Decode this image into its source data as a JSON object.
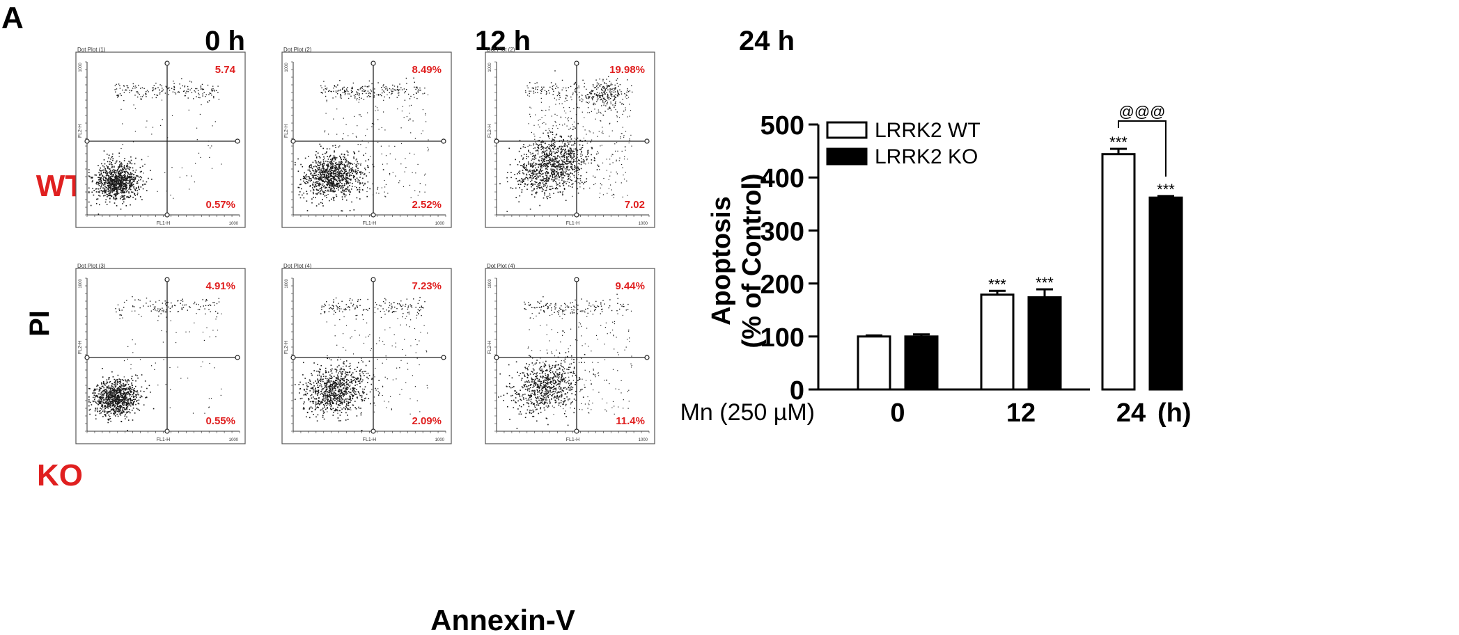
{
  "panel_label": "A",
  "time_headers": [
    "0 h",
    "12 h",
    "24 h"
  ],
  "row_labels": [
    "WT",
    "KO"
  ],
  "y_axis_label": "PI",
  "x_axis_label": "Annexin-V",
  "colors": {
    "percent_red": "#e02020",
    "dot": "#1a1a1a",
    "bar_wt": "#ffffff",
    "bar_ko": "#000000"
  },
  "flow_plots": [
    {
      "title": "Dot Plot (1)",
      "row": "WT",
      "time": "0 h",
      "upper_right": "5.74",
      "lower_right": "0.57%",
      "xlabel": "FL1-H",
      "ylabel": "FL2-H",
      "axis_max": "1000"
    },
    {
      "title": "Dot Plot (2)",
      "row": "WT",
      "time": "12 h",
      "upper_right": "8.49%",
      "lower_right": "2.52%",
      "xlabel": "FL1-H",
      "ylabel": "FL2-H",
      "axis_max": "1000"
    },
    {
      "title": "Dot Plot (2)",
      "row": "WT",
      "time": "24 h",
      "upper_right": "19.98%",
      "lower_right": "7.02",
      "xlabel": "FL1-H",
      "ylabel": "FL2-H",
      "axis_max": "1000"
    },
    {
      "title": "Dot Plot (3)",
      "row": "KO",
      "time": "0 h",
      "upper_right": "4.91%",
      "lower_right": "0.55%",
      "xlabel": "FL1-H",
      "ylabel": "FL2-H",
      "axis_max": "1000"
    },
    {
      "title": "Dot Plot (4)",
      "row": "KO",
      "time": "12 h",
      "upper_right": "7.23%",
      "lower_right": "2.09%",
      "xlabel": "FL1-H",
      "ylabel": "FL2-H",
      "axis_max": "1000"
    },
    {
      "title": "Dot Plot (4)",
      "row": "KO",
      "time": "24 h",
      "upper_right": "9.44%",
      "lower_right": "11.4%",
      "xlabel": "FL1-H",
      "ylabel": "FL2-H",
      "axis_max": "1000"
    }
  ],
  "chart_data": {
    "type": "bar",
    "ylabel_line1": "Apoptosis",
    "ylabel_line2": "(% of Control)",
    "x_prefix_label": "Mn (250 µM)",
    "x_unit_label": "(h)",
    "categories": [
      "0",
      "12",
      "24"
    ],
    "ylim": [
      0,
      500
    ],
    "yticks": [
      "0",
      "100",
      "200",
      "300",
      "400",
      "500"
    ],
    "series": [
      {
        "name": "LRRK2 WT",
        "values": [
          100,
          179,
          444
        ],
        "errors": [
          2,
          7,
          10
        ],
        "sig": [
          "",
          "***",
          "***"
        ]
      },
      {
        "name": "LRRK2 KO",
        "values": [
          100,
          174,
          362
        ],
        "errors": [
          4,
          15,
          3
        ],
        "sig": [
          "",
          "***",
          "***"
        ]
      }
    ],
    "bracket_label": "@@@",
    "legend_position": "top-left",
    "grid": false
  }
}
